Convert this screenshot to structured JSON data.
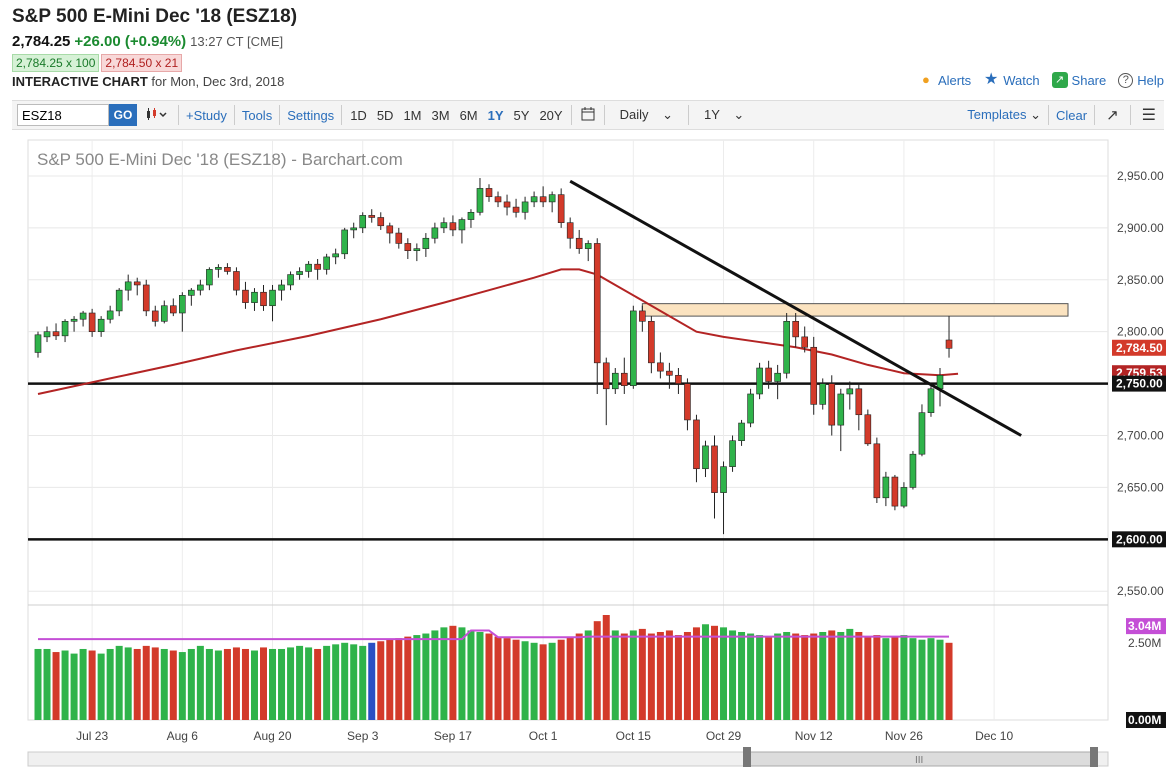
{
  "header": {
    "title": "S&P 500 E-Mini Dec '18 (ESZ18)",
    "last": "2,784.25",
    "change": "+26.00 (+0.94%)",
    "time": "13:27 CT [CME]",
    "bid": "2,784.25 x 100",
    "ask": "2,784.50 x 21",
    "interactive_label": "INTERACTIVE CHART",
    "interactive_date": "for Mon, Dec 3rd, 2018"
  },
  "links": {
    "alerts": "Alerts",
    "watch": "Watch",
    "share": "Share",
    "help": "Help"
  },
  "toolbar": {
    "symbol": "ESZ18",
    "go": "GO",
    "study": "+Study",
    "tools": "Tools",
    "settings": "Settings",
    "periods": [
      "1D",
      "5D",
      "1M",
      "3M",
      "6M",
      "1Y",
      "5Y",
      "20Y"
    ],
    "active_period": "1Y",
    "interval": "Daily",
    "range": "1Y",
    "templates": "Templates",
    "clear": "Clear"
  },
  "chart_data": {
    "type": "candlestick",
    "title": "S&P 500 E-Mini Dec '18 (ESZ18) - Barchart.com",
    "ylim": [
      2530,
      2975
    ],
    "y_ticks": [
      "2,950.00",
      "2,900.00",
      "2,850.00",
      "2,800.00",
      "2,750.00",
      "2,700.00",
      "2,650.00",
      "2,600.00",
      "2,550.00"
    ],
    "x_ticks": [
      "Jul 23",
      "Aug 6",
      "Aug 20",
      "Sep 3",
      "Sep 17",
      "Oct 1",
      "Oct 15",
      "Oct 29",
      "Nov 12",
      "Nov 26",
      "Dec 10"
    ],
    "price_labels": {
      "last": "2,784.50",
      "ma": "2,759.53",
      "line_750": "2,750.00",
      "line_600": "2,600.00"
    },
    "horizontal_lines": [
      2750,
      2600
    ],
    "resistance_zone": [
      2815,
      2827
    ],
    "trendline": [
      {
        "date": "Oct 2",
        "value": 2945
      },
      {
        "date": "Dec 7",
        "value": 2700
      }
    ],
    "candles": [
      [
        2780,
        2800,
        2775,
        2797
      ],
      [
        2795,
        2805,
        2790,
        2800
      ],
      [
        2800,
        2808,
        2792,
        2796
      ],
      [
        2796,
        2812,
        2790,
        2810
      ],
      [
        2810,
        2815,
        2800,
        2812
      ],
      [
        2812,
        2820,
        2805,
        2818
      ],
      [
        2818,
        2822,
        2795,
        2800
      ],
      [
        2800,
        2815,
        2795,
        2812
      ],
      [
        2812,
        2825,
        2808,
        2820
      ],
      [
        2820,
        2842,
        2815,
        2840
      ],
      [
        2840,
        2855,
        2830,
        2848
      ],
      [
        2848,
        2852,
        2835,
        2845
      ],
      [
        2845,
        2850,
        2815,
        2820
      ],
      [
        2820,
        2825,
        2805,
        2810
      ],
      [
        2810,
        2830,
        2808,
        2825
      ],
      [
        2825,
        2832,
        2815,
        2818
      ],
      [
        2818,
        2838,
        2800,
        2835
      ],
      [
        2835,
        2842,
        2825,
        2840
      ],
      [
        2840,
        2850,
        2835,
        2845
      ],
      [
        2845,
        2862,
        2840,
        2860
      ],
      [
        2860,
        2865,
        2852,
        2862
      ],
      [
        2862,
        2866,
        2855,
        2858
      ],
      [
        2858,
        2862,
        2835,
        2840
      ],
      [
        2840,
        2848,
        2822,
        2828
      ],
      [
        2828,
        2842,
        2820,
        2838
      ],
      [
        2838,
        2845,
        2820,
        2825
      ],
      [
        2825,
        2845,
        2810,
        2840
      ],
      [
        2840,
        2850,
        2830,
        2845
      ],
      [
        2845,
        2858,
        2840,
        2855
      ],
      [
        2855,
        2862,
        2850,
        2858
      ],
      [
        2858,
        2868,
        2852,
        2865
      ],
      [
        2865,
        2870,
        2850,
        2860
      ],
      [
        2860,
        2875,
        2855,
        2872
      ],
      [
        2872,
        2880,
        2865,
        2875
      ],
      [
        2875,
        2900,
        2870,
        2898
      ],
      [
        2898,
        2905,
        2890,
        2900
      ],
      [
        2900,
        2915,
        2895,
        2912
      ],
      [
        2912,
        2918,
        2905,
        2910
      ],
      [
        2910,
        2915,
        2898,
        2902
      ],
      [
        2902,
        2905,
        2885,
        2895
      ],
      [
        2895,
        2900,
        2880,
        2885
      ],
      [
        2885,
        2890,
        2870,
        2878
      ],
      [
        2878,
        2885,
        2868,
        2880
      ],
      [
        2880,
        2895,
        2872,
        2890
      ],
      [
        2890,
        2905,
        2885,
        2900
      ],
      [
        2900,
        2910,
        2895,
        2905
      ],
      [
        2905,
        2912,
        2892,
        2898
      ],
      [
        2898,
        2910,
        2885,
        2908
      ],
      [
        2908,
        2918,
        2900,
        2915
      ],
      [
        2915,
        2948,
        2912,
        2938
      ],
      [
        2938,
        2942,
        2925,
        2930
      ],
      [
        2930,
        2935,
        2920,
        2925
      ],
      [
        2925,
        2932,
        2912,
        2920
      ],
      [
        2920,
        2928,
        2910,
        2915
      ],
      [
        2915,
        2930,
        2908,
        2925
      ],
      [
        2925,
        2935,
        2920,
        2930
      ],
      [
        2930,
        2940,
        2920,
        2925
      ],
      [
        2925,
        2935,
        2915,
        2932
      ],
      [
        2932,
        2938,
        2900,
        2905
      ],
      [
        2905,
        2910,
        2880,
        2890
      ],
      [
        2890,
        2898,
        2875,
        2880
      ],
      [
        2880,
        2888,
        2868,
        2885
      ],
      [
        2885,
        2890,
        2740,
        2770
      ],
      [
        2770,
        2775,
        2710,
        2745
      ],
      [
        2745,
        2765,
        2740,
        2760
      ],
      [
        2760,
        2775,
        2740,
        2748
      ],
      [
        2748,
        2825,
        2745,
        2820
      ],
      [
        2820,
        2825,
        2800,
        2810
      ],
      [
        2810,
        2815,
        2760,
        2770
      ],
      [
        2770,
        2780,
        2755,
        2762
      ],
      [
        2762,
        2770,
        2745,
        2758
      ],
      [
        2758,
        2765,
        2740,
        2750
      ],
      [
        2750,
        2755,
        2705,
        2715
      ],
      [
        2715,
        2720,
        2655,
        2668
      ],
      [
        2668,
        2695,
        2660,
        2690
      ],
      [
        2690,
        2700,
        2620,
        2645
      ],
      [
        2645,
        2675,
        2605,
        2670
      ],
      [
        2670,
        2700,
        2665,
        2695
      ],
      [
        2695,
        2715,
        2690,
        2712
      ],
      [
        2712,
        2745,
        2708,
        2740
      ],
      [
        2740,
        2770,
        2735,
        2765
      ],
      [
        2765,
        2772,
        2745,
        2752
      ],
      [
        2752,
        2768,
        2735,
        2760
      ],
      [
        2760,
        2818,
        2755,
        2810
      ],
      [
        2810,
        2818,
        2785,
        2795
      ],
      [
        2795,
        2805,
        2780,
        2785
      ],
      [
        2785,
        2795,
        2720,
        2730
      ],
      [
        2730,
        2755,
        2725,
        2750
      ],
      [
        2750,
        2758,
        2700,
        2710
      ],
      [
        2710,
        2745,
        2685,
        2740
      ],
      [
        2740,
        2752,
        2725,
        2745
      ],
      [
        2745,
        2750,
        2705,
        2720
      ],
      [
        2720,
        2725,
        2690,
        2692
      ],
      [
        2692,
        2698,
        2635,
        2640
      ],
      [
        2640,
        2665,
        2632,
        2660
      ],
      [
        2660,
        2662,
        2628,
        2632
      ],
      [
        2632,
        2655,
        2630,
        2650
      ],
      [
        2650,
        2685,
        2648,
        2682
      ],
      [
        2682,
        2730,
        2680,
        2722
      ],
      [
        2722,
        2748,
        2718,
        2745
      ],
      [
        2745,
        2765,
        2728,
        2758
      ],
      [
        2792,
        2815,
        2775,
        2784
      ]
    ],
    "moving_average": [
      [
        0,
        2740
      ],
      [
        8,
        2755
      ],
      [
        15,
        2768
      ],
      [
        22,
        2782
      ],
      [
        30,
        2796
      ],
      [
        38,
        2812
      ],
      [
        45,
        2828
      ],
      [
        50,
        2840
      ],
      [
        55,
        2852
      ],
      [
        58,
        2860
      ],
      [
        60,
        2860
      ],
      [
        62,
        2855
      ],
      [
        64,
        2845
      ],
      [
        67,
        2830
      ],
      [
        70,
        2815
      ],
      [
        73,
        2800
      ],
      [
        76,
        2795
      ],
      [
        80,
        2790
      ],
      [
        84,
        2785
      ],
      [
        88,
        2778
      ],
      [
        92,
        2768
      ],
      [
        96,
        2760
      ],
      [
        100,
        2758
      ],
      [
        102,
        2759.53
      ]
    ],
    "volume_label": "3.04M",
    "volume_ticks": [
      "2.50M",
      "0.00M"
    ],
    "volume_ylim": [
      0,
      3400000
    ],
    "volume_marker": 3040000,
    "volume": [
      2300,
      2300,
      2200,
      2250,
      2150,
      2300,
      2250,
      2150,
      2300,
      2400,
      2350,
      2300,
      2400,
      2350,
      2300,
      2250,
      2200,
      2300,
      2400,
      2300,
      2250,
      2300,
      2350,
      2300,
      2250,
      2350,
      2300,
      2300,
      2350,
      2400,
      2350,
      2300,
      2400,
      2450,
      2500,
      2450,
      2400,
      2500,
      2550,
      2600,
      2650,
      2700,
      2750,
      2800,
      2900,
      3000,
      3050,
      3000,
      2900,
      2850,
      2800,
      2700,
      2650,
      2600,
      2550,
      2500,
      2450,
      2500,
      2600,
      2700,
      2800,
      2900,
      3200,
      3400,
      2900,
      2800,
      2900,
      2950,
      2800,
      2850,
      2900,
      2750,
      2850,
      3000,
      3100,
      3050,
      3000,
      2900,
      2850,
      2800,
      2750,
      2700,
      2800,
      2850,
      2800,
      2750,
      2800,
      2850,
      2900,
      2850,
      2950,
      2850,
      2700,
      2750,
      2650,
      2700,
      2750,
      2650,
      2600,
      2650,
      2600,
      2500
    ],
    "colors": {
      "up": "#2fb34a",
      "down": "#d33a2a",
      "ma": "#b32424",
      "volume_ma": "#c44fd6",
      "zone_fill": "#fbe3c0",
      "axis_label_bg": "#111111"
    }
  }
}
